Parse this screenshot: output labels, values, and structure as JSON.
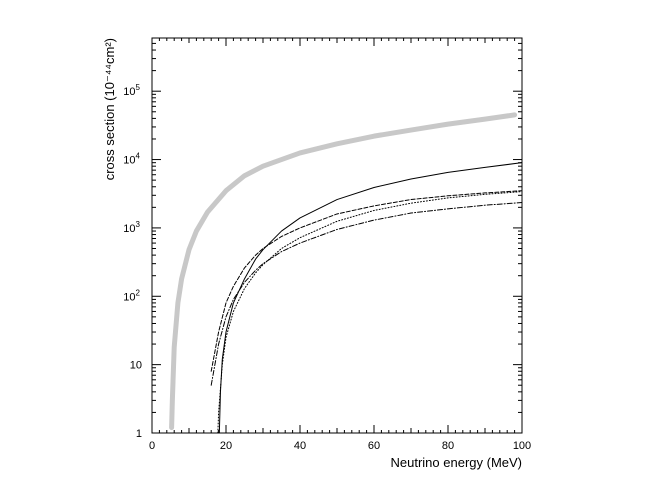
{
  "chart_data": {
    "type": "line",
    "title": "",
    "xlabel": "Neutrino energy (MeV)",
    "ylabel": "cross section (10⁻⁴⁴cm²)",
    "xlim": [
      0,
      100
    ],
    "ylim": [
      1,
      600000
    ],
    "yscale": "log",
    "grid": false,
    "legend": "none",
    "x_ticks": [
      0,
      20,
      40,
      60,
      80,
      100
    ],
    "x_tick_labels": [
      "0",
      "20",
      "40",
      "60",
      "80",
      "100"
    ],
    "y_ticks": [
      1,
      10,
      100,
      1000,
      10000,
      100000
    ],
    "y_tick_labels": [
      {
        "base": "1",
        "exp": ""
      },
      {
        "base": "10",
        "exp": ""
      },
      {
        "base": "10",
        "exp": "2"
      },
      {
        "base": "10",
        "exp": "3"
      },
      {
        "base": "10",
        "exp": "4"
      },
      {
        "base": "10",
        "exp": "5"
      }
    ],
    "series": [
      {
        "style": "thick-gray",
        "color": "#c8c8c8",
        "x": [
          5.3,
          5.5,
          6,
          7,
          8,
          10,
          12,
          15,
          20,
          25,
          30,
          40,
          50,
          60,
          70,
          80,
          90,
          98
        ],
        "y": [
          1.2,
          3,
          18,
          80,
          180,
          480,
          900,
          1700,
          3500,
          5800,
          8000,
          12500,
          17000,
          22000,
          27000,
          33000,
          39000,
          45000
        ]
      },
      {
        "style": "solid",
        "color": "#000000",
        "x": [
          18.2,
          18.5,
          19,
          20,
          22,
          25,
          28,
          30,
          35,
          40,
          50,
          60,
          70,
          80,
          90,
          100
        ],
        "y": [
          1,
          4,
          12,
          30,
          80,
          180,
          350,
          480,
          900,
          1400,
          2600,
          3900,
          5200,
          6500,
          7700,
          9000
        ]
      },
      {
        "style": "dashed",
        "color": "#000000",
        "x": [
          16,
          18,
          20,
          22,
          25,
          28,
          30,
          35,
          40,
          50,
          60,
          70,
          80,
          90,
          100
        ],
        "y": [
          8,
          30,
          80,
          140,
          260,
          400,
          500,
          750,
          1000,
          1600,
          2100,
          2600,
          2950,
          3250,
          3500
        ]
      },
      {
        "style": "dotted",
        "color": "#000000",
        "x": [
          17.8,
          18,
          19,
          20,
          22,
          25,
          28,
          30,
          35,
          40,
          50,
          60,
          70,
          80,
          90,
          100
        ],
        "y": [
          1,
          2,
          10,
          25,
          60,
          130,
          220,
          290,
          500,
          720,
          1250,
          1800,
          2300,
          2750,
          3100,
          3400
        ]
      },
      {
        "style": "dash-dot",
        "color": "#000000",
        "x": [
          16,
          18,
          20,
          22,
          25,
          28,
          30,
          35,
          40,
          50,
          60,
          70,
          80,
          90,
          100
        ],
        "y": [
          5,
          20,
          50,
          90,
          160,
          240,
          300,
          450,
          600,
          950,
          1300,
          1650,
          1900,
          2150,
          2350
        ]
      }
    ]
  }
}
